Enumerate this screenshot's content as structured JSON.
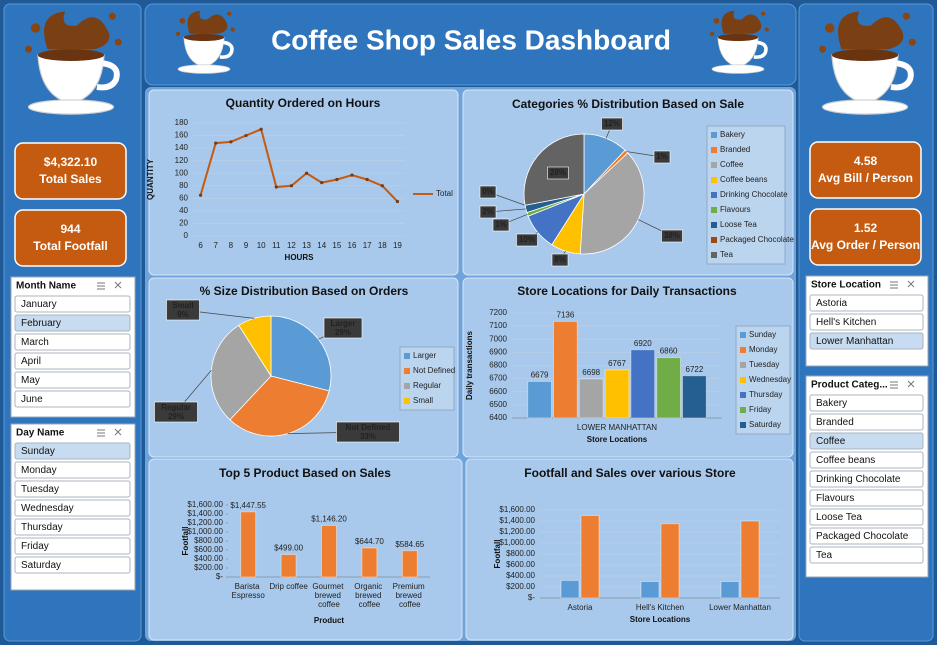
{
  "header": {
    "title": "Coffee Shop Sales Dashboard"
  },
  "kpis": [
    {
      "value": "$4,322.10",
      "label": "Total Sales"
    },
    {
      "value": "944",
      "label": "Total Footfall"
    },
    {
      "value": "4.58",
      "label": "Avg Bill / Person"
    },
    {
      "value": "1.52",
      "label": "Avg Order / Person"
    }
  ],
  "slicers": [
    {
      "title": "Month Name",
      "items": [
        "January",
        "February",
        "March",
        "April",
        "May",
        "June"
      ],
      "selected": [
        1
      ]
    },
    {
      "title": "Day Name",
      "items": [
        "Sunday",
        "Monday",
        "Tuesday",
        "Wednesday",
        "Thursday",
        "Friday",
        "Saturday"
      ],
      "selected": [
        0
      ]
    },
    {
      "title": "Store Location",
      "items": [
        "Astoria",
        "Hell's Kitchen",
        "Lower Manhattan"
      ],
      "selected": [
        2
      ]
    },
    {
      "title": "Product Categ...",
      "items": [
        "Bakery",
        "Branded",
        "Coffee",
        "Coffee beans",
        "Drinking Chocolate",
        "Flavours",
        "Loose Tea",
        "Packaged Chocolate",
        "Tea"
      ],
      "selected": [
        2
      ]
    }
  ],
  "chart_data": [
    {
      "type": "line",
      "title": "Quantity Ordered on Hours",
      "x_label": "HOURS",
      "y_label": "QUANTITY",
      "categories": [
        6,
        7,
        8,
        9,
        10,
        11,
        12,
        13,
        14,
        15,
        16,
        17,
        18,
        19
      ],
      "series": [
        {
          "name": "Total",
          "color": "#c55a11",
          "values": [
            65,
            148,
            150,
            160,
            170,
            78,
            80,
            100,
            85,
            90,
            97,
            90,
            80,
            55
          ]
        }
      ],
      "ylim": [
        0,
        180
      ],
      "yticks": [
        0,
        20,
        40,
        60,
        80,
        100,
        120,
        140,
        160,
        180
      ],
      "grid": true,
      "legend": "right"
    },
    {
      "type": "pie",
      "title": "Categories % Distribution Based on Sale",
      "categories": [
        "Bakery",
        "Branded",
        "Coffee",
        "Coffee beans",
        "Drinking Chocolate",
        "Flavours",
        "Loose Tea",
        "Packaged Chocolate",
        "Tea"
      ],
      "values": [
        12,
        1,
        38,
        8,
        10,
        1,
        2,
        0,
        28
      ],
      "value_labels": [
        "12%",
        "1%",
        "38%",
        "8%",
        "10%",
        "1%",
        "2%",
        "0%",
        "28%"
      ],
      "colors": [
        "#5b9bd5",
        "#ed7d31",
        "#a5a5a5",
        "#ffc000",
        "#4472c4",
        "#70ad47",
        "#255e91",
        "#9e480e",
        "#636363"
      ],
      "legend": "right"
    },
    {
      "type": "pie",
      "title": "% Size Distribution Based on Orders",
      "categories": [
        "Larger",
        "Not Defined",
        "Regular",
        "Small"
      ],
      "values": [
        29,
        33,
        29,
        9
      ],
      "value_labels": [
        "29%",
        "33%",
        "29%",
        "9%"
      ],
      "colors": [
        "#5b9bd5",
        "#ed7d31",
        "#a5a5a5",
        "#ffc000"
      ],
      "legend": "right"
    },
    {
      "type": "bar",
      "title": "Store Locations for Daily Transactions",
      "x_label": "Store Locations",
      "y_label": "Daily transactions",
      "categories": [
        "LOWER MANHATTAN"
      ],
      "series": [
        {
          "name": "Sunday",
          "color": "#5b9bd5",
          "values": [
            6679
          ]
        },
        {
          "name": "Monday",
          "color": "#ed7d31",
          "values": [
            7136
          ]
        },
        {
          "name": "Tuesday",
          "color": "#a5a5a5",
          "values": [
            6698
          ]
        },
        {
          "name": "Wednesday",
          "color": "#ffc000",
          "values": [
            6767
          ]
        },
        {
          "name": "Thursday",
          "color": "#4472c4",
          "values": [
            6920
          ]
        },
        {
          "name": "Friday",
          "color": "#70ad47",
          "values": [
            6860
          ]
        },
        {
          "name": "Saturday",
          "color": "#255e91",
          "values": [
            6722
          ]
        }
      ],
      "ylim": [
        6400,
        7200
      ],
      "yticks": [
        6400,
        6500,
        6600,
        6700,
        6800,
        6900,
        7000,
        7100,
        7200
      ],
      "grid": true,
      "data_labels": true,
      "legend": "right"
    },
    {
      "type": "bar",
      "title": "Top 5 Product Based on Sales",
      "x_label": "Product",
      "y_label": "Footfall",
      "categories": [
        "Barista Espresso",
        "Drip coffee",
        "Gourmet brewed coffee",
        "Organic brewed coffee",
        "Premium brewed coffee"
      ],
      "values": [
        1447.55,
        499.0,
        1146.2,
        644.7,
        584.65
      ],
      "value_labels": [
        "$1,447.55",
        "$499.00",
        "$1,146.20",
        "$644.70",
        "$584.65"
      ],
      "color": "#ed7d31",
      "data_labels": true,
      "grid": false,
      "ylim": [
        0,
        1600
      ],
      "yticks": [
        {
          "value": 0,
          "label": "$-"
        },
        {
          "value": 200,
          "label": "$200.00"
        },
        {
          "value": 400,
          "label": "$400.00"
        },
        {
          "value": 600,
          "label": "$600.00"
        },
        {
          "value": 800,
          "label": "$800.00"
        },
        {
          "value": 1000,
          "label": "$1,000.00"
        },
        {
          "value": 1200,
          "label": "$1,200.00"
        },
        {
          "value": 1400,
          "label": "$1,400.00"
        },
        {
          "value": 1600,
          "label": "$1,600.00"
        }
      ]
    },
    {
      "type": "bar",
      "title": "Footfall and Sales over various Store",
      "x_label": "Store Locations",
      "y_label": "Footfall",
      "categories": [
        "Astoria",
        "Hell's Kitchen",
        "Lower Manhattan"
      ],
      "series": [
        {
          "color": "#5b9bd5",
          "values": [
            320,
            300,
            300
          ]
        },
        {
          "color": "#ed7d31",
          "values": [
            1500,
            1350,
            1400
          ]
        }
      ],
      "grid": true,
      "ylim": [
        0,
        1600
      ],
      "yticks": [
        {
          "value": 0,
          "label": "$-"
        },
        {
          "value": 200,
          "label": "$200.00"
        },
        {
          "value": 400,
          "label": "$400.00"
        },
        {
          "value": 600,
          "label": "$600.00"
        },
        {
          "value": 800,
          "label": "$800.00"
        },
        {
          "value": 1000,
          "label": "$1,000.00"
        },
        {
          "value": 1200,
          "label": "$1,200.00"
        },
        {
          "value": 1400,
          "label": "$1,400.00"
        },
        {
          "value": 1600,
          "label": "$1,600.00"
        }
      ]
    }
  ]
}
